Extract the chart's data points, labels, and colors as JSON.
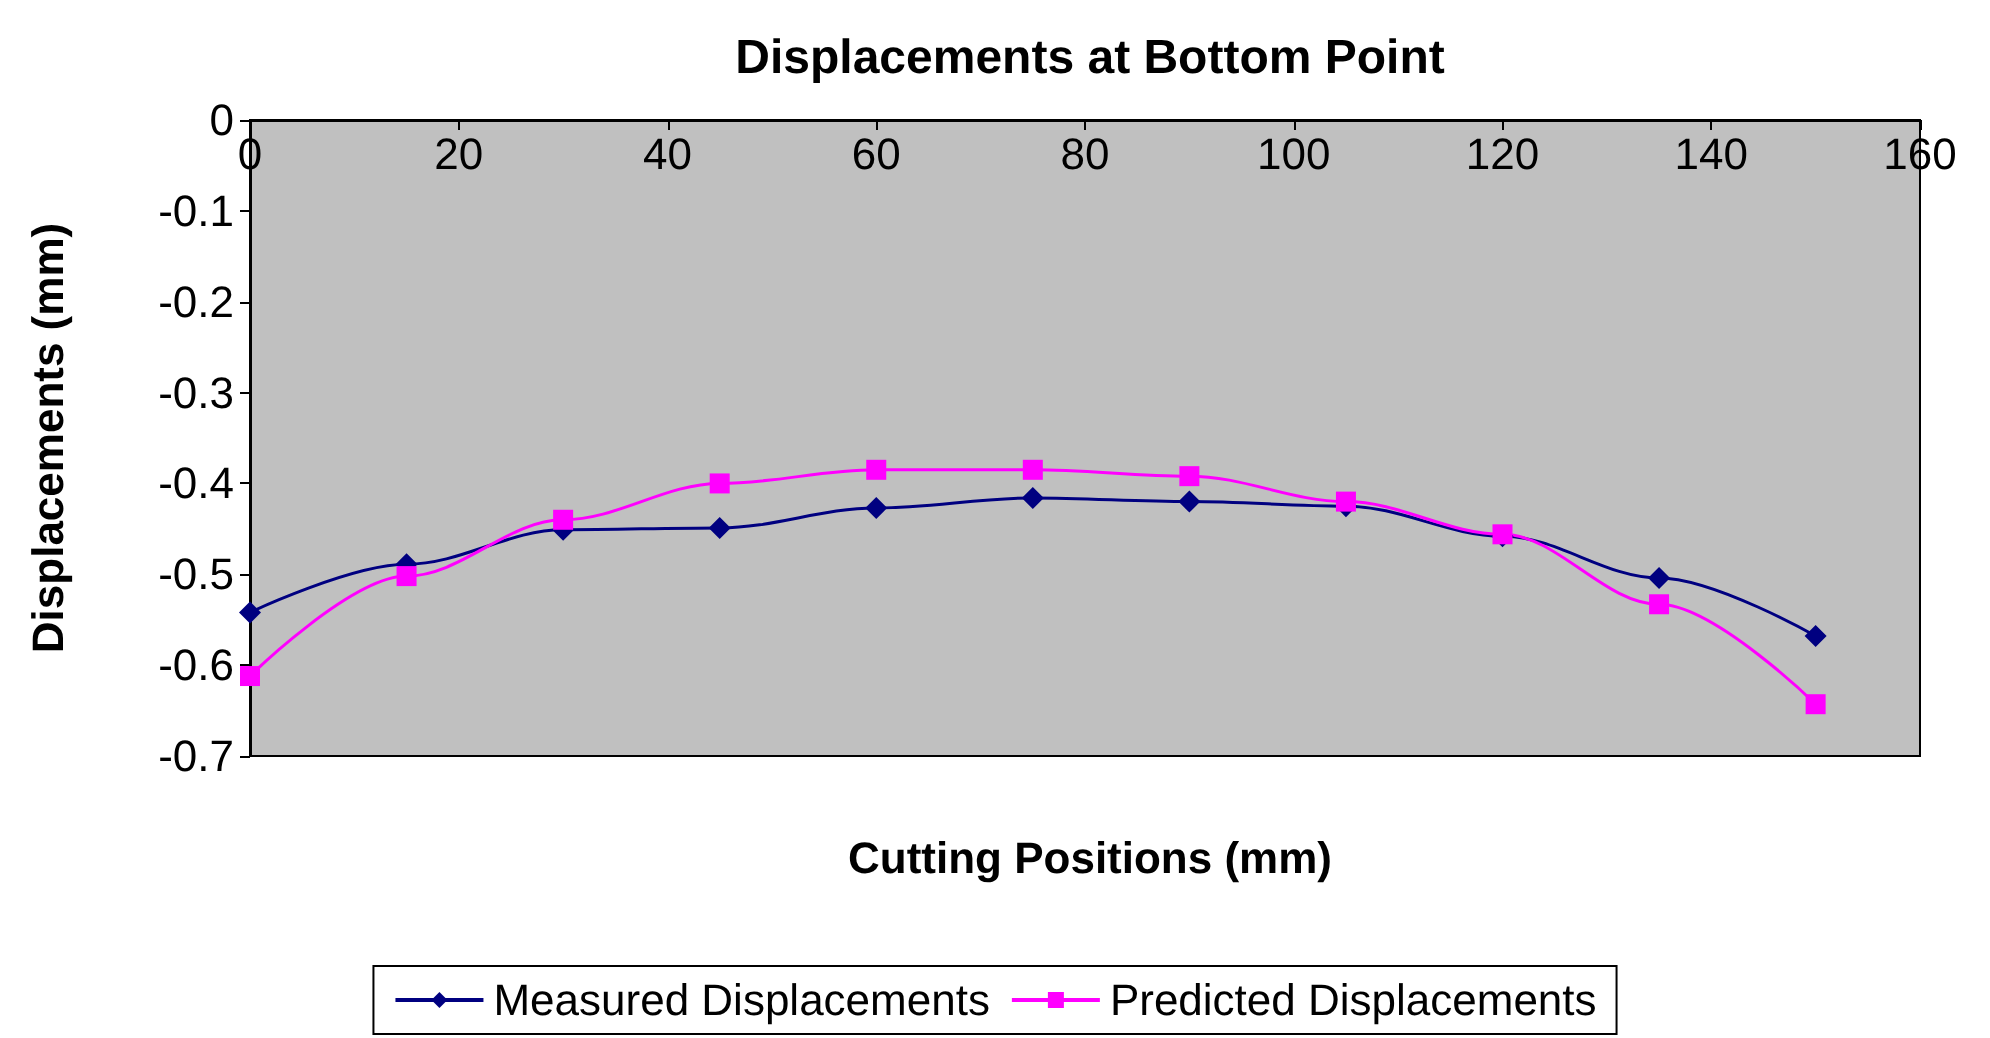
{
  "chart_data": {
    "type": "line",
    "title": "Displacements at Bottom Point",
    "xlabel": "Cutting Positions (mm)",
    "ylabel": "Displacements (mm)",
    "x": [
      0,
      15,
      30,
      45,
      60,
      75,
      90,
      105,
      120,
      135,
      150
    ],
    "xlim": [
      0,
      160
    ],
    "xticks": [
      0,
      20,
      40,
      60,
      80,
      100,
      120,
      140,
      160
    ],
    "ylim": [
      -0.7,
      0
    ],
    "yticks": [
      -0.7,
      -0.6,
      -0.5,
      -0.4,
      -0.3,
      -0.2,
      -0.1,
      0
    ],
    "grid": false,
    "legend": "bottom",
    "series": [
      {
        "name": "Measured Displacements",
        "color": "#000080",
        "marker": "diamond",
        "values": [
          -0.542,
          -0.489,
          -0.451,
          -0.449,
          -0.427,
          -0.416,
          -0.42,
          -0.425,
          -0.458,
          -0.504,
          -0.568
        ]
      },
      {
        "name": "Predicted Displacements",
        "color": "#ff00ff",
        "marker": "square",
        "values": [
          -0.612,
          -0.502,
          -0.44,
          -0.4,
          -0.385,
          -0.385,
          -0.392,
          -0.42,
          -0.456,
          -0.533,
          -0.643
        ]
      }
    ]
  }
}
